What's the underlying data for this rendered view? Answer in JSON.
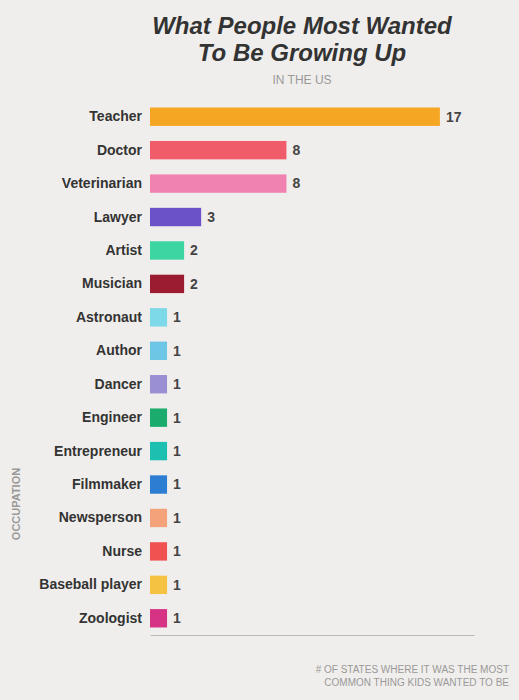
{
  "chart_data": {
    "type": "bar",
    "orientation": "horizontal",
    "title": [
      "What People Most Wanted",
      "To Be Growing Up"
    ],
    "subtitle": "IN THE US",
    "x_label": [
      "# OF STATES WHERE IT WAS THE MOST",
      "COMMON THING KIDS WANTED TO BE"
    ],
    "y_label": "OCCUPATION",
    "categories": [
      "Zoologist",
      "Baseball player",
      "Nurse",
      "Newsperson",
      "Filmmaker",
      "Entrepreneur",
      "Engineer",
      "Dancer",
      "Author",
      "Astronaut",
      "Musician",
      "Artist",
      "Lawyer",
      "Veterinarian",
      "Doctor",
      "Teacher"
    ],
    "values": [
      1,
      1,
      1,
      1,
      1,
      1,
      1,
      1,
      1,
      1,
      2,
      2,
      3,
      8,
      8,
      17
    ],
    "colors": [
      "#d63384",
      "#f5c242",
      "#f05252",
      "#f4a27a",
      "#2d7dd2",
      "#1cbfb0",
      "#1aab6d",
      "#9b8fd4",
      "#6ec6e6",
      "#7dd8e8",
      "#9b1b30",
      "#3dd6a3",
      "#6b52c8",
      "#f082b0",
      "#f05c6a",
      "#f5a623"
    ],
    "xlim": [
      0,
      19
    ],
    "data_labels": true,
    "tick_labels": "y",
    "grid": false
  }
}
